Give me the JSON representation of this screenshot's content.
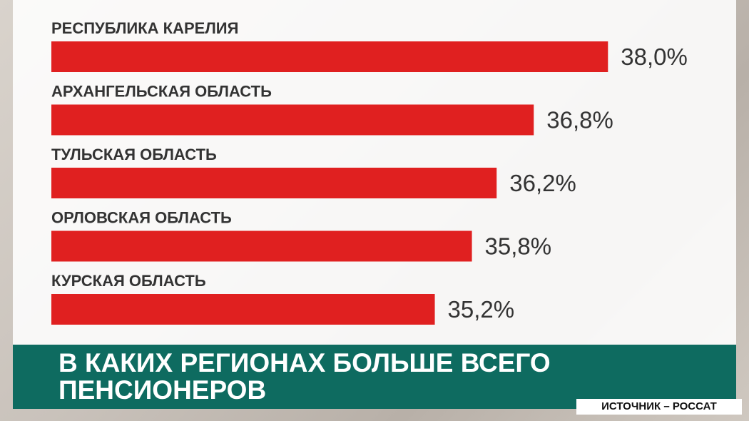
{
  "chart_data": {
    "type": "barh",
    "title": "В КАКИХ РЕГИОНАХ БОЛЬШЕ ВСЕГО ПЕНСИОНЕРОВ",
    "source": "ИСТОЧНИК – РОССАТ",
    "categories": [
      "РЕСПУБЛИКА КАРЕЛИЯ",
      "АРХАНГЕЛЬСКАЯ ОБЛАСТЬ",
      "ТУЛЬСКАЯ ОБЛАСТЬ",
      "ОРЛОВСКАЯ ОБЛАСТЬ",
      "КУРСКАЯ ОБЛАСТЬ"
    ],
    "values": [
      38.0,
      36.8,
      36.2,
      35.8,
      35.2
    ],
    "value_labels": [
      "38,0%",
      "36,8%",
      "36,2%",
      "35,8%",
      "35,2%"
    ],
    "color": "#e02020",
    "xlim": [
      29,
      39
    ]
  }
}
